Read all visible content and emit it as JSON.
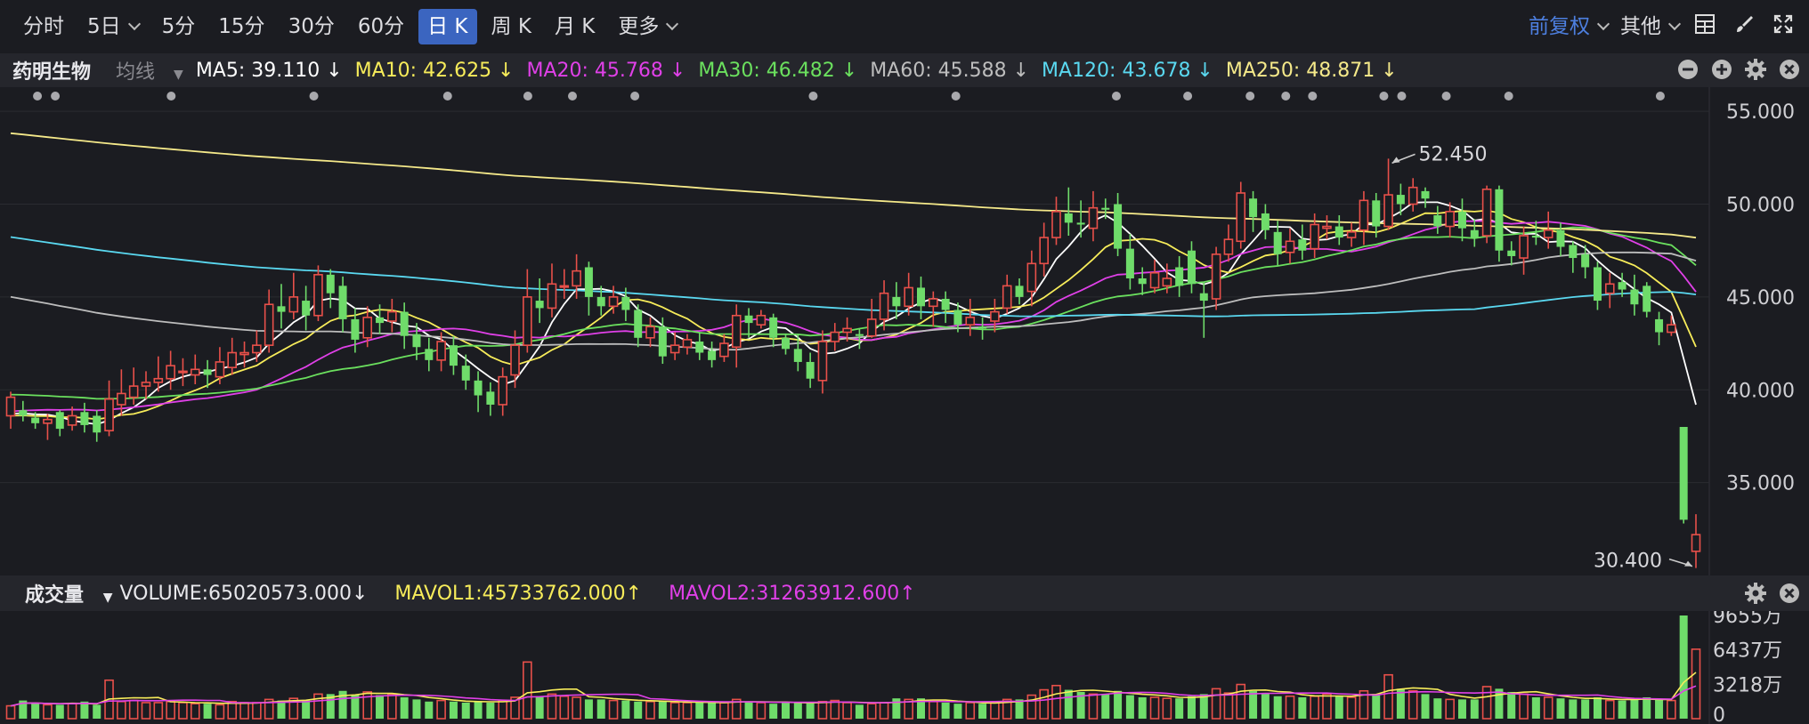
{
  "toolbar": {
    "tabs": [
      {
        "label": "分时"
      },
      {
        "label": "5日",
        "dropdown": true
      },
      {
        "label": "5分"
      },
      {
        "label": "15分"
      },
      {
        "label": "30分"
      },
      {
        "label": "60分"
      },
      {
        "label": "日 K",
        "active": true
      },
      {
        "label": "周 K"
      },
      {
        "label": "月 K"
      },
      {
        "label": "更多",
        "dropdown": true
      }
    ],
    "adjust_label": "前复权",
    "other_label": "其他"
  },
  "legend": {
    "stock_name": "药明生物",
    "ma_dropdown": "均线",
    "items": [
      {
        "text": "MA5: 39.110 ↓",
        "color": "#ffffff"
      },
      {
        "text": "MA10: 42.625 ↓",
        "color": "#f7ec5a"
      },
      {
        "text": "MA20: 45.768 ↓",
        "color": "#e040e8"
      },
      {
        "text": "MA30: 46.482 ↓",
        "color": "#6be05e"
      },
      {
        "text": "MA60: 45.588 ↓",
        "color": "#bdbdbd"
      },
      {
        "text": "MA120: 43.678 ↓",
        "color": "#5ad8f0"
      },
      {
        "text": "MA250: 48.871 ↓",
        "color": "#f5e98a"
      }
    ]
  },
  "volume_legend": {
    "title": "成交量",
    "volume": "VOLUME:65020573.000↓",
    "mavol1": "MAVOL1:45733762.000↑",
    "mavol2": "MAVOL2:31263912.600↑",
    "mavol1_color": "#f7ec5a",
    "mavol2_color": "#e040e8"
  },
  "colors": {
    "up": "#e8504a",
    "down": "#6fdc6a"
  },
  "chart_data": {
    "type": "candlestick",
    "price_axis": {
      "ticks": [
        "55.000",
        "50.000",
        "45.000",
        "40.000",
        "35.000"
      ],
      "ylim": [
        30.0,
        56.3
      ]
    },
    "volume_axis": {
      "ticks": [
        "9655万",
        "6437万",
        "3218万",
        "0"
      ],
      "ylim_wan": [
        0,
        9655
      ]
    },
    "annotations": {
      "high": "52.450",
      "low": "30.400"
    },
    "candles": [
      [
        38.6,
        39.6,
        37.9,
        39.9
      ],
      [
        38.9,
        38.6,
        38.3,
        39.4
      ],
      [
        38.5,
        38.2,
        37.9,
        38.8
      ],
      [
        38.2,
        38.4,
        37.3,
        38.7
      ],
      [
        38.8,
        37.9,
        37.5,
        38.9
      ],
      [
        38.1,
        38.6,
        37.8,
        39.1
      ],
      [
        38.8,
        38.1,
        37.7,
        39.3
      ],
      [
        38.6,
        37.7,
        37.2,
        38.9
      ],
      [
        37.8,
        39.5,
        37.5,
        40.5
      ],
      [
        39.2,
        39.8,
        38.6,
        41.1
      ],
      [
        39.6,
        40.2,
        39.2,
        41.2
      ],
      [
        40.2,
        40.4,
        39.5,
        41.0
      ],
      [
        40.4,
        40.6,
        39.9,
        41.8
      ],
      [
        40.6,
        41.3,
        40.0,
        42.1
      ],
      [
        41.0,
        41.0,
        40.2,
        41.7
      ],
      [
        40.8,
        41.1,
        40.3,
        41.9
      ],
      [
        41.1,
        40.8,
        40.1,
        41.6
      ],
      [
        40.7,
        41.5,
        40.3,
        42.3
      ],
      [
        41.2,
        42.0,
        40.8,
        42.8
      ],
      [
        41.9,
        42.0,
        41.2,
        42.6
      ],
      [
        42.0,
        42.4,
        41.5,
        43.2
      ],
      [
        42.4,
        44.6,
        42.0,
        45.4
      ],
      [
        44.5,
        44.2,
        43.3,
        45.7
      ],
      [
        44.2,
        45.0,
        43.8,
        46.3
      ],
      [
        44.8,
        44.0,
        43.2,
        45.6
      ],
      [
        44.0,
        46.2,
        43.7,
        46.7
      ],
      [
        46.2,
        45.2,
        44.4,
        46.5
      ],
      [
        45.6,
        43.8,
        43.1,
        46.1
      ],
      [
        43.8,
        42.7,
        42.0,
        44.4
      ],
      [
        42.8,
        43.9,
        42.3,
        44.5
      ],
      [
        43.9,
        43.6,
        43.0,
        44.6
      ],
      [
        43.7,
        44.2,
        43.1,
        44.9
      ],
      [
        44.2,
        42.9,
        42.2,
        44.7
      ],
      [
        43.0,
        42.3,
        41.6,
        43.6
      ],
      [
        42.2,
        41.6,
        41.0,
        42.8
      ],
      [
        41.6,
        42.6,
        41.0,
        43.1
      ],
      [
        42.4,
        41.3,
        40.8,
        42.9
      ],
      [
        41.3,
        40.5,
        40.0,
        41.9
      ],
      [
        40.5,
        39.7,
        38.8,
        41.0
      ],
      [
        39.9,
        39.2,
        38.6,
        40.4
      ],
      [
        39.2,
        40.7,
        38.6,
        41.2
      ],
      [
        40.8,
        42.4,
        40.1,
        43.2
      ],
      [
        42.4,
        45.0,
        42.0,
        46.5
      ],
      [
        44.8,
        44.4,
        43.6,
        46.0
      ],
      [
        44.4,
        45.7,
        43.9,
        46.8
      ],
      [
        45.6,
        45.6,
        44.9,
        46.5
      ],
      [
        45.6,
        46.4,
        44.9,
        47.3
      ],
      [
        46.6,
        45.0,
        44.0,
        46.9
      ],
      [
        45.0,
        44.5,
        44.0,
        45.6
      ],
      [
        44.5,
        45.0,
        44.1,
        45.6
      ],
      [
        45.0,
        44.3,
        43.7,
        45.5
      ],
      [
        44.3,
        42.8,
        42.3,
        44.6
      ],
      [
        42.8,
        43.4,
        42.3,
        43.9
      ],
      [
        43.4,
        41.8,
        41.4,
        43.9
      ],
      [
        42.0,
        42.4,
        41.6,
        43.1
      ],
      [
        42.3,
        42.7,
        41.9,
        43.0
      ],
      [
        42.6,
        42.0,
        41.6,
        43.1
      ],
      [
        42.1,
        41.6,
        41.2,
        42.6
      ],
      [
        41.8,
        42.5,
        41.5,
        43.0
      ],
      [
        42.3,
        44.0,
        41.2,
        44.6
      ],
      [
        44.0,
        43.6,
        42.8,
        44.4
      ],
      [
        43.5,
        44.0,
        43.3,
        44.3
      ],
      [
        43.9,
        42.8,
        42.3,
        44.1
      ],
      [
        42.8,
        42.2,
        41.9,
        43.0
      ],
      [
        42.2,
        41.5,
        41.0,
        43.0
      ],
      [
        41.5,
        40.6,
        40.1,
        42.0
      ],
      [
        40.5,
        42.6,
        39.8,
        43.2
      ],
      [
        42.6,
        43.1,
        42.1,
        43.6
      ],
      [
        43.1,
        43.3,
        42.6,
        43.9
      ],
      [
        43.0,
        42.9,
        42.2,
        43.3
      ],
      [
        42.9,
        43.8,
        42.8,
        44.9
      ],
      [
        43.8,
        45.2,
        43.2,
        45.9
      ],
      [
        45.0,
        44.5,
        43.8,
        45.8
      ],
      [
        44.5,
        45.5,
        44.0,
        46.3
      ],
      [
        45.5,
        44.5,
        43.8,
        46.1
      ],
      [
        44.5,
        44.9,
        43.4,
        45.3
      ],
      [
        44.9,
        44.3,
        43.6,
        45.3
      ],
      [
        44.3,
        43.5,
        43.1,
        44.7
      ],
      [
        43.5,
        43.9,
        42.9,
        44.9
      ],
      [
        43.4,
        43.3,
        42.7,
        43.9
      ],
      [
        43.7,
        44.2,
        43.1,
        44.9
      ],
      [
        44.4,
        45.6,
        44.1,
        46.2
      ],
      [
        45.6,
        45.0,
        44.6,
        46.0
      ],
      [
        45.3,
        46.8,
        44.5,
        47.5
      ],
      [
        46.8,
        48.2,
        46.1,
        49.0
      ],
      [
        48.2,
        49.6,
        47.8,
        50.4
      ],
      [
        49.5,
        49.0,
        48.3,
        50.9
      ],
      [
        49.0,
        48.9,
        48.2,
        50.2
      ],
      [
        48.7,
        49.8,
        48.0,
        50.7
      ],
      [
        49.8,
        49.7,
        49.2,
        50.3
      ],
      [
        50.0,
        47.6,
        47.2,
        50.6
      ],
      [
        47.6,
        46.0,
        45.4,
        48.4
      ],
      [
        46.0,
        45.7,
        45.1,
        46.6
      ],
      [
        45.5,
        46.3,
        45.2,
        47.0
      ],
      [
        45.6,
        46.0,
        45.2,
        46.8
      ],
      [
        46.6,
        45.6,
        45.0,
        47.2
      ],
      [
        47.5,
        45.7,
        45.2,
        48.0
      ],
      [
        45.2,
        44.8,
        42.8,
        45.8
      ],
      [
        44.9,
        47.3,
        44.3,
        47.7
      ],
      [
        47.3,
        48.1,
        46.9,
        48.9
      ],
      [
        48.0,
        50.6,
        47.6,
        51.2
      ],
      [
        50.3,
        49.3,
        48.5,
        50.7
      ],
      [
        49.5,
        48.6,
        48.1,
        50.0
      ],
      [
        48.5,
        47.3,
        46.7,
        49.1
      ],
      [
        47.4,
        48.0,
        46.8,
        48.7
      ],
      [
        48.1,
        47.5,
        47.0,
        48.9
      ],
      [
        47.6,
        48.9,
        47.1,
        49.5
      ],
      [
        48.7,
        48.8,
        48.1,
        49.4
      ],
      [
        48.8,
        48.2,
        47.8,
        49.4
      ],
      [
        48.2,
        48.5,
        47.7,
        49.0
      ],
      [
        48.6,
        50.2,
        47.8,
        50.7
      ],
      [
        50.2,
        48.8,
        48.2,
        50.6
      ],
      [
        48.8,
        50.5,
        48.6,
        52.45
      ],
      [
        50.5,
        50.0,
        49.4,
        51.1
      ],
      [
        50.0,
        50.9,
        49.6,
        51.4
      ],
      [
        50.7,
        50.3,
        49.8,
        50.9
      ],
      [
        49.4,
        48.8,
        48.4,
        49.9
      ],
      [
        48.8,
        49.6,
        48.2,
        50.1
      ],
      [
        49.6,
        48.7,
        48.0,
        50.3
      ],
      [
        48.6,
        48.2,
        47.7,
        49.2
      ],
      [
        48.3,
        50.8,
        47.9,
        51.0
      ],
      [
        50.8,
        47.5,
        46.9,
        51.0
      ],
      [
        47.5,
        47.2,
        46.7,
        48.0
      ],
      [
        47.1,
        48.3,
        46.2,
        48.8
      ],
      [
        48.3,
        48.2,
        47.8,
        49.1
      ],
      [
        48.2,
        48.6,
        47.6,
        49.6
      ],
      [
        48.6,
        47.7,
        47.2,
        49.0
      ],
      [
        47.8,
        47.1,
        46.3,
        48.0
      ],
      [
        47.3,
        46.6,
        46.0,
        47.8
      ],
      [
        46.6,
        44.8,
        44.3,
        46.9
      ],
      [
        45.2,
        45.7,
        44.4,
        46.3
      ],
      [
        45.8,
        45.4,
        45.0,
        46.3
      ],
      [
        45.4,
        44.6,
        44.0,
        46.2
      ],
      [
        45.6,
        44.2,
        43.9,
        45.8
      ],
      [
        43.8,
        43.1,
        42.4,
        44.2
      ],
      [
        43.1,
        43.5,
        42.9,
        44.0
      ],
      [
        38.0,
        33.0,
        32.8,
        38.0
      ],
      [
        31.3,
        32.2,
        30.4,
        33.3
      ]
    ],
    "volume_wan": [
      1200,
      1700,
      1500,
      1300,
      1300,
      1400,
      1600,
      1300,
      3600,
      1600,
      1700,
      1500,
      1500,
      1600,
      1500,
      1400,
      1400,
      1300,
      1600,
      1500,
      1500,
      1800,
      1700,
      1900,
      1700,
      2300,
      2300,
      2600,
      2200,
      2500,
      2200,
      2300,
      2000,
      1800,
      1600,
      1700,
      1600,
      1500,
      1600,
      1500,
      1700,
      2000,
      5300,
      2100,
      2300,
      2100,
      2000,
      1800,
      1800,
      1700,
      1700,
      1600,
      1600,
      1600,
      1500,
      1500,
      1500,
      1500,
      1500,
      1800,
      1600,
      1500,
      1400,
      1500,
      1500,
      1500,
      1600,
      1700,
      1500,
      1300,
      1400,
      1500,
      1900,
      1800,
      1900,
      1600,
      1500,
      1400,
      1500,
      1400,
      1500,
      1800,
      1800,
      2200,
      2700,
      3100,
      2700,
      2500,
      2300,
      2300,
      2600,
      2200,
      2000,
      2000,
      1900,
      1900,
      2100,
      2300,
      2800,
      2400,
      3200,
      2600,
      2400,
      2100,
      2100,
      2000,
      2100,
      2300,
      2100,
      2000,
      2600,
      2300,
      4100,
      2800,
      2600,
      2300,
      1900,
      1800,
      1800,
      1800,
      3000,
      2800,
      2500,
      2300,
      2000,
      2000,
      1900,
      1800,
      1800,
      2000,
      1700,
      1700,
      1800,
      2000,
      1800,
      1700,
      9655,
      6500
    ],
    "ma_last_values": {
      "MA5": 39.11,
      "MA10": 42.625,
      "MA20": 45.768,
      "MA30": 46.482,
      "MA60": 45.588,
      "MA120": 43.678,
      "MA250": 48.871
    }
  }
}
